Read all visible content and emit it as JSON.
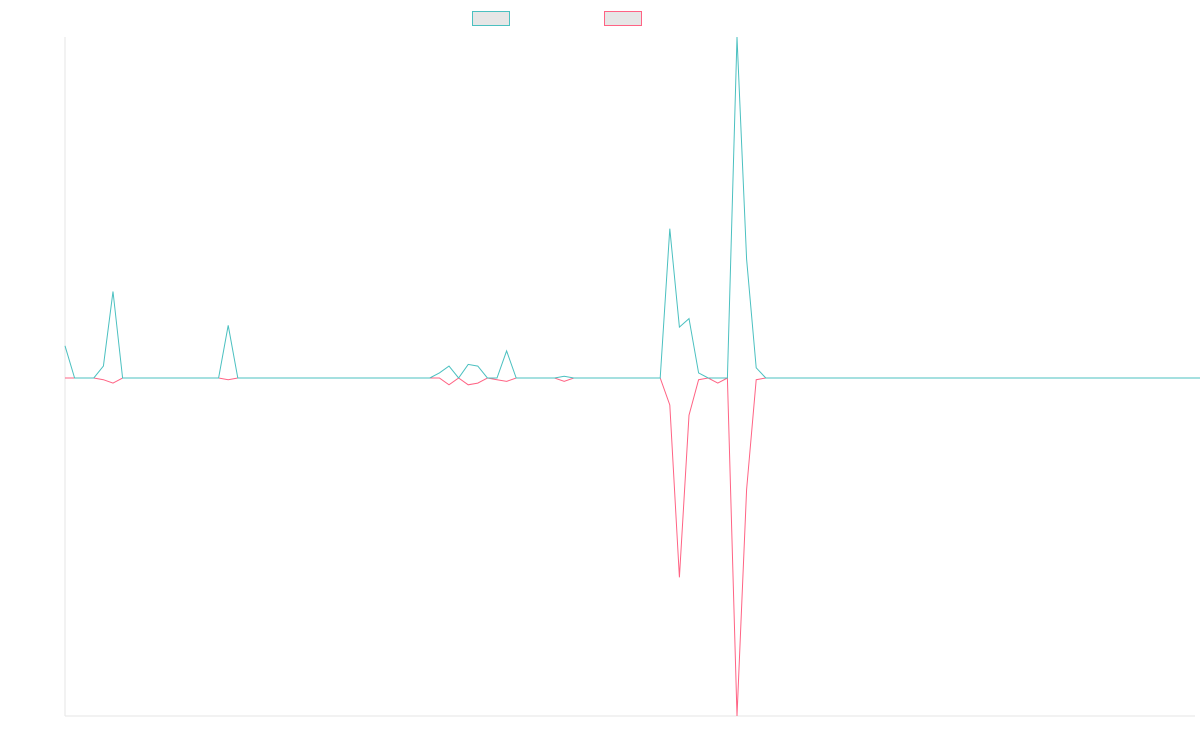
{
  "chart_data": {
    "type": "line",
    "title": "",
    "xlabel": "",
    "ylabel": "",
    "grid": false,
    "legend_position": "top",
    "ylim": [
      -100,
      100
    ],
    "x_count": 120,
    "series": [
      {
        "name": "",
        "color": "#4bc0c0",
        "values": [
          19,
          0,
          0,
          0,
          7,
          51,
          0,
          0,
          0,
          0,
          0,
          0,
          0,
          0,
          0,
          0,
          0,
          31,
          0,
          0,
          0,
          0,
          0,
          0,
          0,
          0,
          0,
          0,
          0,
          0,
          0,
          0,
          0,
          0,
          0,
          0,
          0,
          0,
          0,
          3,
          7,
          0,
          8,
          7,
          0,
          0,
          16,
          0,
          0,
          0,
          0,
          0,
          1,
          0,
          0,
          0,
          0,
          0,
          0,
          0,
          0,
          0,
          0,
          88,
          30,
          35,
          3,
          0,
          0,
          0,
          201,
          70,
          6,
          0,
          0,
          0,
          0,
          0,
          0,
          0,
          0,
          0,
          0,
          0,
          0,
          0,
          0,
          0,
          0,
          0,
          0,
          0,
          0,
          0,
          0,
          0,
          0,
          0,
          0,
          0,
          0,
          0,
          0,
          0,
          0,
          0,
          0,
          0,
          0,
          0,
          0,
          0,
          0,
          0,
          0,
          0,
          0,
          0,
          0,
          0
        ]
      },
      {
        "name": "",
        "color": "#ff6384",
        "values": [
          0,
          0,
          0,
          0,
          -1,
          -3,
          0,
          0,
          0,
          0,
          0,
          0,
          0,
          0,
          0,
          0,
          0,
          -1,
          0,
          0,
          0,
          0,
          0,
          0,
          0,
          0,
          0,
          0,
          0,
          0,
          0,
          0,
          0,
          0,
          0,
          0,
          0,
          0,
          0,
          0,
          -4,
          0,
          -4,
          -3,
          0,
          -1,
          -2,
          0,
          0,
          0,
          0,
          0,
          -2,
          0,
          0,
          0,
          0,
          0,
          0,
          0,
          0,
          0,
          0,
          -16,
          -118,
          -22,
          -1,
          0,
          -3,
          0,
          -200,
          -66,
          -1,
          0,
          0,
          0,
          0,
          0,
          0,
          0,
          0,
          0,
          0,
          0,
          0,
          0,
          0,
          0,
          0,
          0,
          0,
          0,
          0,
          0,
          0,
          0,
          0,
          0,
          0,
          0,
          0,
          0,
          0,
          0,
          0,
          0,
          0,
          0,
          0,
          0,
          0,
          0,
          0,
          0,
          0,
          0,
          0,
          0,
          0,
          0
        ]
      }
    ]
  }
}
